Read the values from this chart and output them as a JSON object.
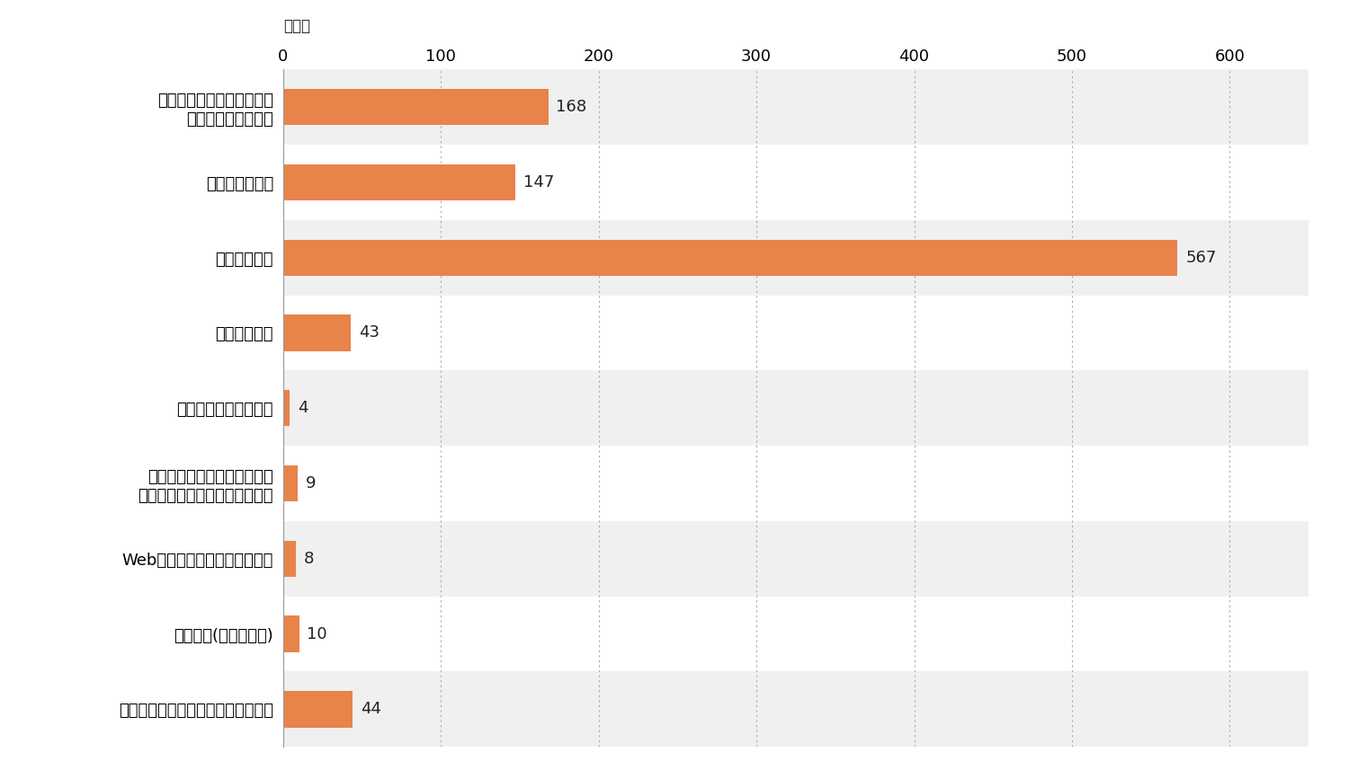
{
  "categories": [
    "家や職場、最寄駅といった\n生活圏内からの距離",
    "低価格。お得感",
    "味、美味しさ",
    "種類の豊富さ",
    "提供スピード。手軽さ",
    "イートインや駐車場の有無、\n店内システムなどの使いやすさ",
    "Webサイトなどでの口コミ評価",
    "そのほか(衛生面など)",
    "利用したことがないのでわからない"
  ],
  "values": [
    168,
    147,
    567,
    43,
    4,
    9,
    8,
    10,
    44
  ],
  "bar_color": "#E8834A",
  "bg_odd": "#F0F0F0",
  "bg_even": "#FFFFFF",
  "xlim": [
    0,
    650
  ],
  "xticks": [
    0,
    100,
    200,
    300,
    400,
    500,
    600
  ],
  "bar_height": 0.48,
  "value_label_fontsize": 13,
  "ytick_fontsize": 13,
  "xtick_fontsize": 13,
  "unit_fontsize": 12,
  "text_color": "#222222",
  "grid_color": "#AAAAAA",
  "spine_color": "#999999"
}
